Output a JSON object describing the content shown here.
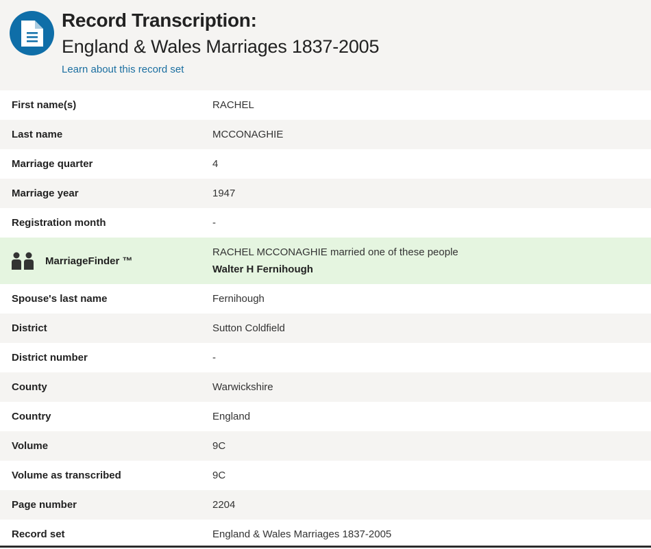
{
  "header": {
    "title": "Record Transcription:",
    "subtitle": "England & Wales Marriages 1837-2005",
    "learn_link": "Learn about this record set",
    "icon": "document-icon",
    "accent": "#0f6ea8"
  },
  "rows_top": [
    {
      "label": "First name(s)",
      "value": "RACHEL"
    },
    {
      "label": "Last name",
      "value": "MCCONAGHIE"
    },
    {
      "label": "Marriage quarter",
      "value": "4"
    },
    {
      "label": "Marriage year",
      "value": "1947"
    },
    {
      "label": "Registration month",
      "value": "-"
    }
  ],
  "marriage_finder": {
    "icon": "couple-icon",
    "label": "MarriageFinder ™",
    "text": "RACHEL MCCONAGHIE married one of these people",
    "spouse": "Walter H Fernihough",
    "background": "#e5f5e0"
  },
  "rows_bottom": [
    {
      "label": "Spouse's last name",
      "value": "Fernihough"
    },
    {
      "label": "District",
      "value": "Sutton Coldfield"
    },
    {
      "label": "District number",
      "value": "-"
    },
    {
      "label": "County",
      "value": "Warwickshire"
    },
    {
      "label": "Country",
      "value": "England"
    },
    {
      "label": "Volume",
      "value": "9C"
    },
    {
      "label": "Volume as transcribed",
      "value": "9C"
    },
    {
      "label": "Page number",
      "value": "2204"
    },
    {
      "label": "Record set",
      "value": "England & Wales Marriages 1837-2005"
    }
  ]
}
